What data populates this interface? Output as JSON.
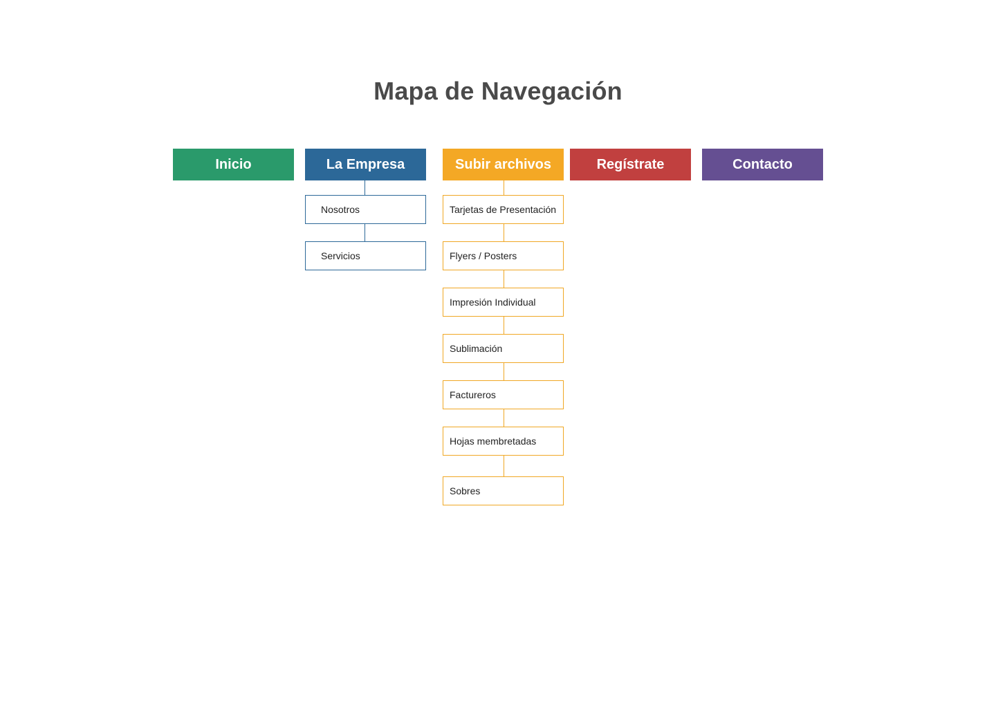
{
  "title": "Mapa de Navegación",
  "colors": {
    "inicio": "#2a9a6b",
    "empresa": "#2c6898",
    "archivos": "#f4a825",
    "registrate": "#c1403f",
    "contacto": "#654f92"
  },
  "nav": [
    {
      "label": "Inicio",
      "children": []
    },
    {
      "label": "La Empresa",
      "children": [
        "Nosotros",
        "Servicios"
      ]
    },
    {
      "label": "Subir archivos",
      "children": [
        "Tarjetas de Presentación",
        "Flyers / Posters",
        "Impresión Individual",
        "Sublimación",
        "Factureros",
        "Hojas membretadas",
        "Sobres"
      ]
    },
    {
      "label": "Regístrate",
      "children": []
    },
    {
      "label": "Contacto",
      "children": []
    }
  ]
}
